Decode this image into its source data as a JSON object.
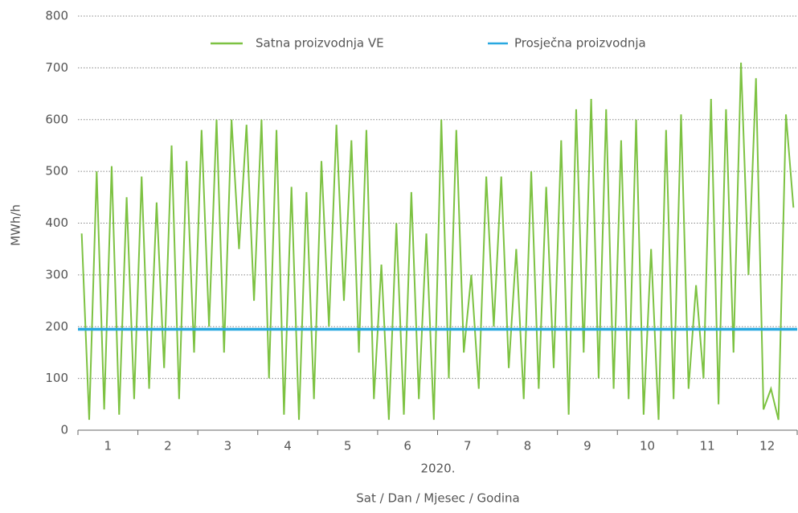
{
  "chart_data": {
    "type": "line",
    "xlabel": "2020.",
    "xlabel2": "Sat / Dan / Mjesec / Godina",
    "ylabel": "MWh/h",
    "xlim": [
      0,
      12
    ],
    "ylim": [
      0,
      800
    ],
    "yticks": [
      0,
      100,
      200,
      300,
      400,
      500,
      600,
      700,
      800
    ],
    "xticks": [
      {
        "value": 0.5,
        "label": "1"
      },
      {
        "value": 1.5,
        "label": "2"
      },
      {
        "value": 2.5,
        "label": "3"
      },
      {
        "value": 3.5,
        "label": "4"
      },
      {
        "value": 4.5,
        "label": "5"
      },
      {
        "value": 5.5,
        "label": "6"
      },
      {
        "value": 6.5,
        "label": "7"
      },
      {
        "value": 7.5,
        "label": "8"
      },
      {
        "value": 8.5,
        "label": "9"
      },
      {
        "value": 9.5,
        "label": "10"
      },
      {
        "value": 10.5,
        "label": "11"
      },
      {
        "value": 11.5,
        "label": "12"
      }
    ],
    "xboundaries": [
      0,
      1,
      2,
      3,
      4,
      5,
      6,
      7,
      8,
      9,
      10,
      11,
      12
    ],
    "grid": true,
    "series": [
      {
        "name": "Satna proizvodnja VE",
        "color": "#7dc242",
        "x": [
          0.0625,
          0.1875,
          0.3125,
          0.4375,
          0.5625,
          0.6875,
          0.8125,
          0.9375,
          1.0625,
          1.1875,
          1.3125,
          1.4375,
          1.5625,
          1.6875,
          1.8125,
          1.9375,
          2.0625,
          2.1875,
          2.3125,
          2.4375,
          2.5625,
          2.6875,
          2.8125,
          2.9375,
          3.0625,
          3.1875,
          3.3125,
          3.4375,
          3.5625,
          3.6875,
          3.8125,
          3.9375,
          4.0625,
          4.1875,
          4.3125,
          4.4375,
          4.5625,
          4.6875,
          4.8125,
          4.9375,
          5.0625,
          5.1875,
          5.3125,
          5.4375,
          5.5625,
          5.6875,
          5.8125,
          5.9375,
          6.0625,
          6.1875,
          6.3125,
          6.4375,
          6.5625,
          6.6875,
          6.8125,
          6.9375,
          7.0625,
          7.1875,
          7.3125,
          7.4375,
          7.5625,
          7.6875,
          7.8125,
          7.9375,
          8.0625,
          8.1875,
          8.3125,
          8.4375,
          8.5625,
          8.6875,
          8.8125,
          8.9375,
          9.0625,
          9.1875,
          9.3125,
          9.4375,
          9.5625,
          9.6875,
          9.8125,
          9.9375,
          10.0625,
          10.1875,
          10.3125,
          10.4375,
          10.5625,
          10.6875,
          10.8125,
          10.9375,
          11.0625,
          11.1875,
          11.3125,
          11.4375,
          11.5625,
          11.6875,
          11.8125,
          11.9375
        ],
        "values": [
          380,
          20,
          500,
          40,
          510,
          30,
          450,
          60,
          490,
          80,
          440,
          120,
          550,
          60,
          520,
          150,
          580,
          200,
          600,
          150,
          600,
          350,
          590,
          250,
          600,
          100,
          580,
          30,
          470,
          20,
          460,
          60,
          520,
          200,
          590,
          250,
          560,
          150,
          580,
          60,
          320,
          20,
          400,
          30,
          460,
          60,
          380,
          20,
          600,
          100,
          580,
          150,
          300,
          80,
          490,
          200,
          490,
          120,
          350,
          60,
          500,
          80,
          470,
          120,
          560,
          30,
          620,
          150,
          640,
          100,
          620,
          80,
          560,
          60,
          600,
          30,
          350,
          20,
          580,
          60,
          610,
          80,
          280,
          100,
          640,
          50,
          620,
          150,
          710,
          300,
          680,
          40,
          80,
          20,
          610,
          430
        ]
      },
      {
        "name": "Prosječna proizvodnja",
        "color": "#29a8e0",
        "x": [
          0,
          12
        ],
        "values": [
          195,
          195
        ]
      }
    ]
  }
}
